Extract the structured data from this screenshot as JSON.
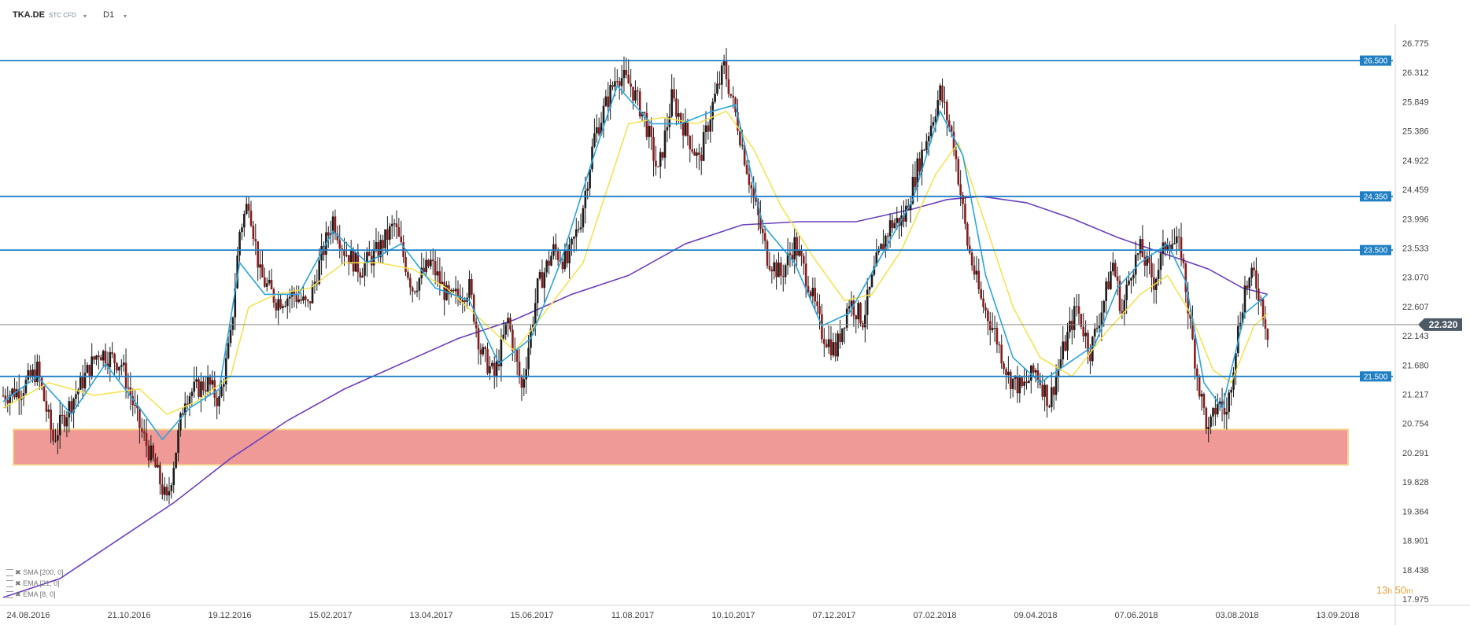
{
  "toolbar": {
    "symbol": "TKA.DE",
    "instrument_type": "STC CFD",
    "timeframe": "D1"
  },
  "timer": {
    "hours": "13",
    "hours_unit": "h",
    "minutes": "50",
    "minutes_unit": "m"
  },
  "legend": [
    {
      "label": "SMA [200, 0]"
    },
    {
      "label": "EMA [21, 0]"
    },
    {
      "label": "EMA [8, 0]"
    }
  ],
  "colors": {
    "hline": "#1f7fc4",
    "tag_bg": "#1f7fc4",
    "current_line": "#888888",
    "current_tag": "#4d5a66",
    "bull": "#1c1c1c",
    "bear": "#8b1a1a",
    "sma200": "#6a3fbf",
    "ema21": "#f4e24a",
    "ema8": "#2aa4e0",
    "zone_fill": "#ef9a97",
    "zone_border": "#f6d38a"
  },
  "chart_data": {
    "type": "candlestick",
    "symbol": "TKA.DE",
    "timeframe": "D1",
    "x_ticks": [
      "24.08.2016",
      "21.10.2016",
      "19.12.2016",
      "15.02.2017",
      "13.04.2017",
      "15.06.2017",
      "11.08.2017",
      "10.10.2017",
      "07.12.2017",
      "07.02.2018",
      "09.04.2018",
      "07.06.2018",
      "03.08.2018",
      "13.09.2018"
    ],
    "y_ticks": [
      "26.775",
      "26.312",
      "25.849",
      "25.386",
      "24.922",
      "24.459",
      "23.996",
      "23.533",
      "23.070",
      "22.607",
      "22.143",
      "21.680",
      "21.217",
      "20.754",
      "20.291",
      "19.828",
      "19.364",
      "18.901",
      "18.438",
      "17.975"
    ],
    "ylim": [
      17.975,
      26.775
    ],
    "horizontal_levels": [
      {
        "value": 26.5,
        "label": "26.500"
      },
      {
        "value": 24.35,
        "label": "24.350"
      },
      {
        "value": 23.5,
        "label": "23.500"
      },
      {
        "value": 21.5,
        "label": "21.500"
      }
    ],
    "current_price": {
      "value": 22.32,
      "label": "22.320"
    },
    "support_zone": {
      "from": 20.1,
      "to": 20.66,
      "start_date": "24.08.2016",
      "end_date": "03.08.2018"
    },
    "price_path": [
      [
        0,
        21.2
      ],
      [
        8,
        21.3
      ],
      [
        15,
        21.6
      ],
      [
        22,
        20.5
      ],
      [
        30,
        21.1
      ],
      [
        42,
        21.9
      ],
      [
        52,
        21.7
      ],
      [
        60,
        20.7
      ],
      [
        67,
        20.05
      ],
      [
        72,
        19.5
      ],
      [
        80,
        21.2
      ],
      [
        90,
        21.4
      ],
      [
        95,
        21.1
      ],
      [
        100,
        22.1
      ],
      [
        104,
        23.8
      ],
      [
        108,
        24.3
      ],
      [
        113,
        23.1
      ],
      [
        120,
        22.7
      ],
      [
        128,
        22.8
      ],
      [
        134,
        22.6
      ],
      [
        140,
        23.4
      ],
      [
        145,
        24.0
      ],
      [
        150,
        23.5
      ],
      [
        157,
        23.2
      ],
      [
        165,
        23.5
      ],
      [
        172,
        23.9
      ],
      [
        180,
        22.9
      ],
      [
        188,
        23.3
      ],
      [
        196,
        22.7
      ],
      [
        205,
        22.9
      ],
      [
        210,
        21.9
      ],
      [
        216,
        21.5
      ],
      [
        222,
        22.4
      ],
      [
        228,
        21.3
      ],
      [
        235,
        22.9
      ],
      [
        242,
        23.5
      ],
      [
        248,
        23.3
      ],
      [
        254,
        24.0
      ],
      [
        260,
        25.3
      ],
      [
        266,
        25.9
      ],
      [
        270,
        26.3
      ],
      [
        276,
        26.1
      ],
      [
        282,
        25.6
      ],
      [
        288,
        24.7
      ],
      [
        294,
        25.9
      ],
      [
        300,
        25.4
      ],
      [
        306,
        24.9
      ],
      [
        312,
        25.8
      ],
      [
        317,
        26.4
      ],
      [
        323,
        25.5
      ],
      [
        330,
        24.3
      ],
      [
        336,
        23.4
      ],
      [
        342,
        23.1
      ],
      [
        348,
        23.6
      ],
      [
        354,
        23.0
      ],
      [
        360,
        22.2
      ],
      [
        366,
        21.9
      ],
      [
        372,
        22.7
      ],
      [
        378,
        22.4
      ],
      [
        384,
        23.3
      ],
      [
        390,
        23.9
      ],
      [
        396,
        24.0
      ],
      [
        402,
        24.8
      ],
      [
        408,
        25.5
      ],
      [
        412,
        26.0
      ],
      [
        418,
        25.2
      ],
      [
        424,
        23.6
      ],
      [
        430,
        22.7
      ],
      [
        436,
        22.2
      ],
      [
        442,
        21.5
      ],
      [
        448,
        21.3
      ],
      [
        454,
        21.6
      ],
      [
        460,
        21.1
      ],
      [
        466,
        21.9
      ],
      [
        472,
        22.6
      ],
      [
        478,
        21.9
      ],
      [
        484,
        22.7
      ],
      [
        488,
        23.3
      ],
      [
        492,
        22.5
      ],
      [
        496,
        23.2
      ],
      [
        500,
        23.5
      ],
      [
        506,
        23.0
      ],
      [
        512,
        23.7
      ],
      [
        518,
        23.5
      ],
      [
        522,
        22.3
      ],
      [
        526,
        21.3
      ],
      [
        530,
        20.6
      ],
      [
        534,
        21.1
      ],
      [
        538,
        20.9
      ],
      [
        542,
        22.0
      ],
      [
        546,
        22.9
      ],
      [
        550,
        23.1
      ],
      [
        553,
        22.7
      ],
      [
        556,
        22.2
      ]
    ],
    "sma200_path": [
      [
        0,
        18.0
      ],
      [
        25,
        18.3
      ],
      [
        50,
        18.9
      ],
      [
        75,
        19.5
      ],
      [
        100,
        20.2
      ],
      [
        125,
        20.8
      ],
      [
        150,
        21.3
      ],
      [
        175,
        21.7
      ],
      [
        200,
        22.1
      ],
      [
        225,
        22.4
      ],
      [
        250,
        22.8
      ],
      [
        275,
        23.1
      ],
      [
        300,
        23.6
      ],
      [
        325,
        23.9
      ],
      [
        350,
        23.95
      ],
      [
        375,
        23.95
      ],
      [
        400,
        24.15
      ],
      [
        415,
        24.3
      ],
      [
        430,
        24.35
      ],
      [
        450,
        24.25
      ],
      [
        470,
        24.0
      ],
      [
        490,
        23.7
      ],
      [
        510,
        23.45
      ],
      [
        530,
        23.2
      ],
      [
        545,
        22.9
      ],
      [
        556,
        22.8
      ]
    ],
    "ema21_path": [
      [
        0,
        21.0
      ],
      [
        20,
        21.4
      ],
      [
        40,
        21.2
      ],
      [
        60,
        21.3
      ],
      [
        72,
        20.9
      ],
      [
        85,
        21.1
      ],
      [
        100,
        21.5
      ],
      [
        108,
        22.6
      ],
      [
        120,
        22.8
      ],
      [
        135,
        22.9
      ],
      [
        150,
        23.3
      ],
      [
        165,
        23.3
      ],
      [
        180,
        23.2
      ],
      [
        195,
        22.9
      ],
      [
        210,
        22.4
      ],
      [
        225,
        21.9
      ],
      [
        240,
        22.6
      ],
      [
        255,
        23.3
      ],
      [
        265,
        24.4
      ],
      [
        275,
        25.5
      ],
      [
        290,
        25.6
      ],
      [
        305,
        25.5
      ],
      [
        318,
        25.7
      ],
      [
        330,
        25.1
      ],
      [
        342,
        24.2
      ],
      [
        356,
        23.4
      ],
      [
        370,
        22.7
      ],
      [
        382,
        22.8
      ],
      [
        395,
        23.5
      ],
      [
        410,
        24.7
      ],
      [
        420,
        25.2
      ],
      [
        432,
        23.9
      ],
      [
        444,
        22.6
      ],
      [
        456,
        21.8
      ],
      [
        470,
        21.5
      ],
      [
        485,
        22.2
      ],
      [
        500,
        22.8
      ],
      [
        512,
        23.1
      ],
      [
        522,
        22.5
      ],
      [
        532,
        21.6
      ],
      [
        540,
        21.4
      ],
      [
        550,
        22.3
      ],
      [
        556,
        22.5
      ]
    ],
    "ema8_path": [
      [
        0,
        21.1
      ],
      [
        15,
        21.5
      ],
      [
        30,
        20.9
      ],
      [
        45,
        21.7
      ],
      [
        60,
        21.0
      ],
      [
        70,
        20.5
      ],
      [
        82,
        21.0
      ],
      [
        95,
        21.3
      ],
      [
        104,
        23.3
      ],
      [
        115,
        22.8
      ],
      [
        130,
        22.8
      ],
      [
        145,
        23.8
      ],
      [
        160,
        23.3
      ],
      [
        175,
        23.6
      ],
      [
        190,
        22.9
      ],
      [
        205,
        22.7
      ],
      [
        218,
        21.7
      ],
      [
        232,
        22.1
      ],
      [
        245,
        23.3
      ],
      [
        258,
        24.8
      ],
      [
        270,
        26.1
      ],
      [
        285,
        25.5
      ],
      [
        298,
        25.5
      ],
      [
        312,
        25.7
      ],
      [
        322,
        25.8
      ],
      [
        334,
        23.9
      ],
      [
        348,
        23.3
      ],
      [
        360,
        22.3
      ],
      [
        372,
        22.5
      ],
      [
        386,
        23.4
      ],
      [
        400,
        24.3
      ],
      [
        412,
        25.7
      ],
      [
        422,
        25.0
      ],
      [
        432,
        23.1
      ],
      [
        444,
        21.8
      ],
      [
        456,
        21.4
      ],
      [
        468,
        21.7
      ],
      [
        480,
        22.0
      ],
      [
        490,
        22.9
      ],
      [
        500,
        23.3
      ],
      [
        512,
        23.6
      ],
      [
        520,
        23.0
      ],
      [
        528,
        21.4
      ],
      [
        536,
        21.0
      ],
      [
        546,
        22.5
      ],
      [
        556,
        22.8
      ]
    ]
  }
}
